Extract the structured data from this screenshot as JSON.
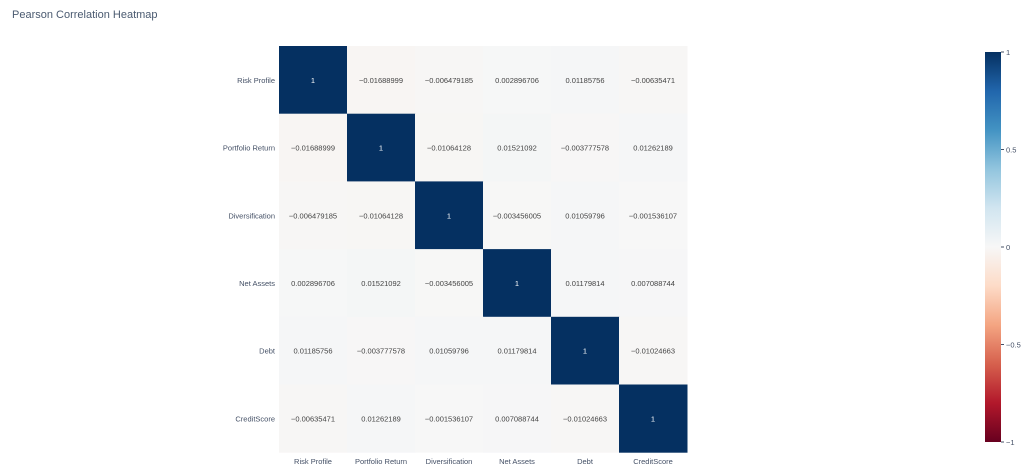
{
  "page": {
    "title": "Pearson Correlation Heatmap"
  },
  "chart_data": {
    "type": "heatmap",
    "title": "Pearson Correlation Heatmap",
    "x_labels": [
      "Risk Profile",
      "Portfolio Return",
      "Diversification",
      "Net Assets",
      "Debt",
      "CreditScore"
    ],
    "y_labels": [
      "Risk Profile",
      "Portfolio Return",
      "Diversification",
      "Net Assets",
      "Debt",
      "CreditScore"
    ],
    "z": [
      [
        1,
        -0.01688999,
        -0.006479185,
        0.002896706,
        0.01185756,
        -0.00635471
      ],
      [
        -0.01688999,
        1,
        -0.01064128,
        0.01521092,
        -0.003777578,
        0.01262189
      ],
      [
        -0.006479185,
        -0.01064128,
        1,
        -0.003456005,
        0.01059796,
        -0.001536107
      ],
      [
        0.002896706,
        0.01521092,
        -0.003456005,
        1,
        0.01179814,
        0.007088744
      ],
      [
        0.01185756,
        -0.003777578,
        0.01059796,
        0.01179814,
        1,
        -0.01024663
      ],
      [
        -0.00635471,
        0.01262189,
        -0.001536107,
        0.007088744,
        -0.01024663,
        1
      ]
    ],
    "z_text": [
      [
        "1",
        "−0.01688999",
        "−0.006479185",
        "0.002896706",
        "0.01185756",
        "−0.00635471"
      ],
      [
        "−0.01688999",
        "1",
        "−0.01064128",
        "0.01521092",
        "−0.003777578",
        "0.01262189"
      ],
      [
        "−0.006479185",
        "−0.01064128",
        "1",
        "−0.003456005",
        "0.01059796",
        "−0.001536107"
      ],
      [
        "0.002896706",
        "0.01521092",
        "−0.003456005",
        "1",
        "0.01179814",
        "0.007088744"
      ],
      [
        "0.01185756",
        "−0.003777578",
        "0.01059796",
        "0.01179814",
        "1",
        "−0.01024663"
      ],
      [
        "−0.00635471",
        "0.01262189",
        "−0.001536107",
        "0.007088744",
        "−0.01024663",
        "1"
      ]
    ],
    "zmin": -1,
    "zmax": 1,
    "colorscale": "RdBu",
    "colorbar": {
      "tick_values": [
        1,
        0.5,
        0,
        -0.5,
        -1
      ],
      "tick_labels": [
        "1",
        "0.5",
        "0",
        "−0.5",
        "−1"
      ]
    }
  }
}
